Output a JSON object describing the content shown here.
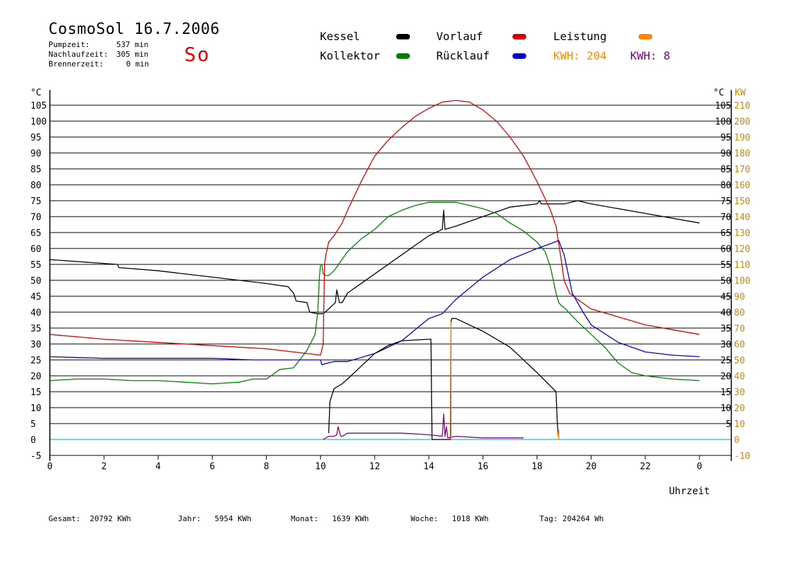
{
  "header": {
    "title": "CosmoSol 16.7.2006",
    "pump_label": "Pumpzeit:",
    "pump_value": "537 min",
    "nachlauf_label": "Nachlaufzeit:",
    "nachlauf_value": "305 min",
    "brenner_label": "Brennerzeit:",
    "brenner_value": "0 min",
    "day": "So"
  },
  "legend": {
    "kessel": "Kessel",
    "kollektor": "Kollektor",
    "vorlauf": "Vorlauf",
    "ruecklauf": "Rücklauf",
    "leistung": "Leistung",
    "kwh1": "KWH: 204",
    "kwh2": "KWH: 8"
  },
  "footer": {
    "gesamt": "Gesamt:  20792 KWh",
    "jahr": "Jahr:   5954 KWh",
    "monat": "Monat:   1639 KWh",
    "woche": "Woche:   1018 KWh",
    "tag": "Tag: 204264 Wh"
  },
  "colors": {
    "kessel": "#000000",
    "kollektor": "#008000",
    "vorlauf": "#dd0000",
    "ruecklauf": "#0000cc",
    "leistung": "#ff8800",
    "kwh2": "#800080",
    "baseline": "#00cccc"
  },
  "chart_data": {
    "type": "line",
    "xlabel": "Uhrzeit",
    "ylabel_left": "°C",
    "ylabel_right_temp": "°C",
    "ylabel_right_power": "KW",
    "xlim": [
      0,
      24
    ],
    "ylim": [
      -5,
      107
    ],
    "x_ticks": [
      "0",
      "2",
      "4",
      "6",
      "8",
      "10",
      "12",
      "14",
      "16",
      "18",
      "20",
      "22",
      "0"
    ],
    "y_ticks_left": [
      "-5",
      "0",
      "5",
      "10",
      "15",
      "20",
      "25",
      "30",
      "35",
      "40",
      "45",
      "50",
      "55",
      "60",
      "65",
      "70",
      "75",
      "80",
      "85",
      "90",
      "95",
      "100",
      "105"
    ],
    "y_ticks_right_temp": [
      "5",
      "10",
      "15",
      "20",
      "25",
      "30",
      "35",
      "40",
      "45",
      "50",
      "55",
      "60",
      "65",
      "70",
      "75",
      "80",
      "85",
      "90",
      "95",
      "100",
      "105"
    ],
    "y_ticks_right_power": [
      "-10",
      "0",
      "10",
      "20",
      "30",
      "40",
      "50",
      "60",
      "70",
      "80",
      "90",
      "100",
      "110",
      "120",
      "130",
      "140",
      "150",
      "160",
      "170",
      "180",
      "190",
      "200",
      "210"
    ],
    "grid": true,
    "series": [
      {
        "name": "Kessel",
        "x": [
          0,
          2.5,
          2.55,
          4,
          6,
          7,
          8,
          8.8,
          9,
          9.1,
          9.5,
          9.6,
          9.9,
          10.1,
          10.3,
          10.55,
          10.6,
          10.7,
          10.8,
          11,
          12,
          13,
          14,
          14.5,
          14.55,
          14.6,
          15,
          16,
          17,
          18,
          18.1,
          18.15,
          19,
          19.5,
          20,
          22,
          24
        ],
        "y": [
          56.5,
          55,
          54,
          53,
          51,
          50,
          49,
          48,
          46,
          43.5,
          43,
          40,
          39.5,
          39.5,
          41,
          43,
          47,
          43,
          43,
          46,
          52,
          58,
          64,
          66,
          72,
          66,
          67,
          70,
          73,
          74,
          75,
          74,
          74,
          75,
          74,
          71,
          68
        ]
      },
      {
        "name": "Kollektor",
        "x": [
          0,
          1,
          2,
          3,
          4,
          5,
          6,
          7,
          7.5,
          8,
          8.5,
          9,
          9.5,
          9.8,
          9.9,
          9.95,
          10,
          10.05,
          10.1,
          10.2,
          10.3,
          10.5,
          11,
          11.5,
          12,
          12.5,
          13,
          13.5,
          14,
          14.5,
          15,
          15.5,
          16,
          16.5,
          17,
          17.5,
          18,
          18.3,
          18.5,
          18.6,
          18.7,
          18.8,
          18.9,
          19,
          19.5,
          20,
          20.5,
          21,
          21.5,
          22,
          23,
          24
        ],
        "y": [
          18.5,
          19,
          19,
          18.5,
          18.5,
          18,
          17.5,
          18,
          19,
          19,
          22,
          22.5,
          28,
          33,
          40,
          50,
          55,
          55,
          52,
          51.5,
          51.5,
          53,
          59,
          63,
          66,
          70,
          72,
          73.5,
          74.5,
          74.5,
          74.5,
          73.5,
          72.5,
          71,
          68,
          65.5,
          62,
          59,
          54,
          50,
          46,
          43,
          42,
          41.5,
          37,
          33,
          29,
          24,
          21,
          20,
          19,
          18.5
        ]
      },
      {
        "name": "Vorlauf",
        "x": [
          0,
          2,
          4,
          6,
          8,
          9,
          10,
          10.1,
          10.15,
          10.2,
          10.3,
          10.5,
          10.8,
          11,
          11.5,
          12,
          12.5,
          13,
          13.5,
          14,
          14.5,
          15,
          15.5,
          16,
          16.5,
          17,
          17.5,
          18,
          18.5,
          18.7,
          18.9,
          19,
          19.2,
          19.5,
          20,
          21,
          22,
          23,
          24
        ],
        "y": [
          33,
          31.5,
          30.5,
          29.5,
          28.5,
          27.5,
          26.5,
          30,
          55,
          58,
          62,
          64,
          68,
          72,
          81,
          89,
          94,
          98,
          101.5,
          104,
          106,
          106.5,
          106,
          103.5,
          100,
          95,
          89,
          81,
          72,
          67,
          56,
          50,
          46,
          44,
          41,
          38.5,
          36,
          34.5,
          33
        ]
      },
      {
        "name": "Rücklauf",
        "x": [
          0,
          2,
          4,
          6,
          7.5,
          8,
          9,
          10,
          10.05,
          10.5,
          11,
          12,
          13,
          14,
          14.5,
          15,
          16,
          17,
          18,
          18.5,
          18.8,
          19,
          19.3,
          19.7,
          20,
          21,
          22,
          23,
          24
        ],
        "y": [
          26,
          25.5,
          25.5,
          25.5,
          25,
          25,
          25,
          25,
          23.5,
          24.5,
          24.5,
          27,
          31,
          38,
          39.5,
          44,
          51,
          56.5,
          60,
          61.5,
          62.5,
          58,
          46,
          40,
          36,
          30.5,
          27.5,
          26.5,
          26
        ]
      },
      {
        "name": "Leistung",
        "x": [
          10.3,
          10.35,
          10.5,
          10.8,
          11,
          12,
          12.5,
          13,
          14,
          14.08,
          14.12,
          14.8,
          14.82,
          14.85,
          15,
          16,
          17,
          18,
          18.7,
          18.75,
          18.8
        ],
        "y": [
          2,
          12,
          16,
          17.5,
          19,
          27,
          29.5,
          31,
          31.5,
          31.5,
          0,
          0,
          37,
          38,
          38,
          34,
          29,
          21,
          15,
          5,
          0
        ]
      },
      {
        "name": "KWH 8",
        "x": [
          10.1,
          10.3,
          10.5,
          10.6,
          10.65,
          10.75,
          10.8,
          11,
          12,
          13,
          14,
          14.5,
          14.55,
          14.6,
          14.65,
          14.7,
          15,
          16,
          17,
          17.5
        ],
        "y": [
          0,
          1,
          1,
          1.5,
          4,
          1,
          1,
          2,
          2,
          2,
          1.5,
          1,
          8,
          1,
          4,
          0.5,
          1,
          0.5,
          0.5,
          0.5
        ]
      }
    ]
  }
}
